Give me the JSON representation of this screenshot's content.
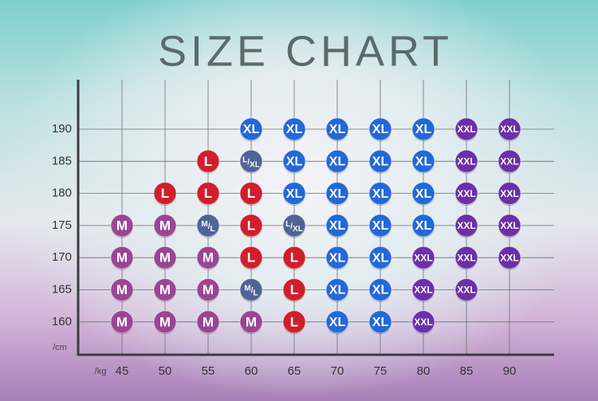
{
  "title": "SIZE CHART",
  "x_unit": "/kg",
  "y_unit": "/cm",
  "weights": [
    45,
    50,
    55,
    60,
    65,
    70,
    75,
    80,
    85,
    90
  ],
  "heights": [
    190,
    185,
    180,
    175,
    170,
    165,
    160
  ],
  "colors": {
    "M": "#9a4593",
    "L": "#d01f2c",
    "XL": "#2468d8",
    "XXL": "#6b2fa8",
    "M/L": "#4f6396",
    "L/XL": "#4f6396"
  },
  "rows": [
    [
      null,
      null,
      null,
      "XL",
      "XL",
      "XL",
      "XL",
      "XL",
      "XXL",
      "XXL"
    ],
    [
      null,
      null,
      "L",
      "L/XL",
      "XL",
      "XL",
      "XL",
      "XL",
      "XXL",
      "XXL"
    ],
    [
      null,
      "L",
      "L",
      "L",
      "XL",
      "XL",
      "XL",
      "XL",
      "XXL",
      "XXL"
    ],
    [
      "M",
      "M",
      "M/L",
      "L",
      "L/XL",
      "XL",
      "XL",
      "XL",
      "XXL",
      "XXL"
    ],
    [
      "M",
      "M",
      "M",
      "L",
      "L",
      "XL",
      "XL",
      "XXL",
      "XXL",
      "XXL"
    ],
    [
      "M",
      "M",
      "M",
      "M/L",
      "L",
      "XL",
      "XL",
      "XXL",
      "XXL",
      null
    ],
    [
      "M",
      "M",
      "M",
      "M",
      "L",
      "XL",
      "XL",
      "XXL",
      null,
      null
    ]
  ]
}
